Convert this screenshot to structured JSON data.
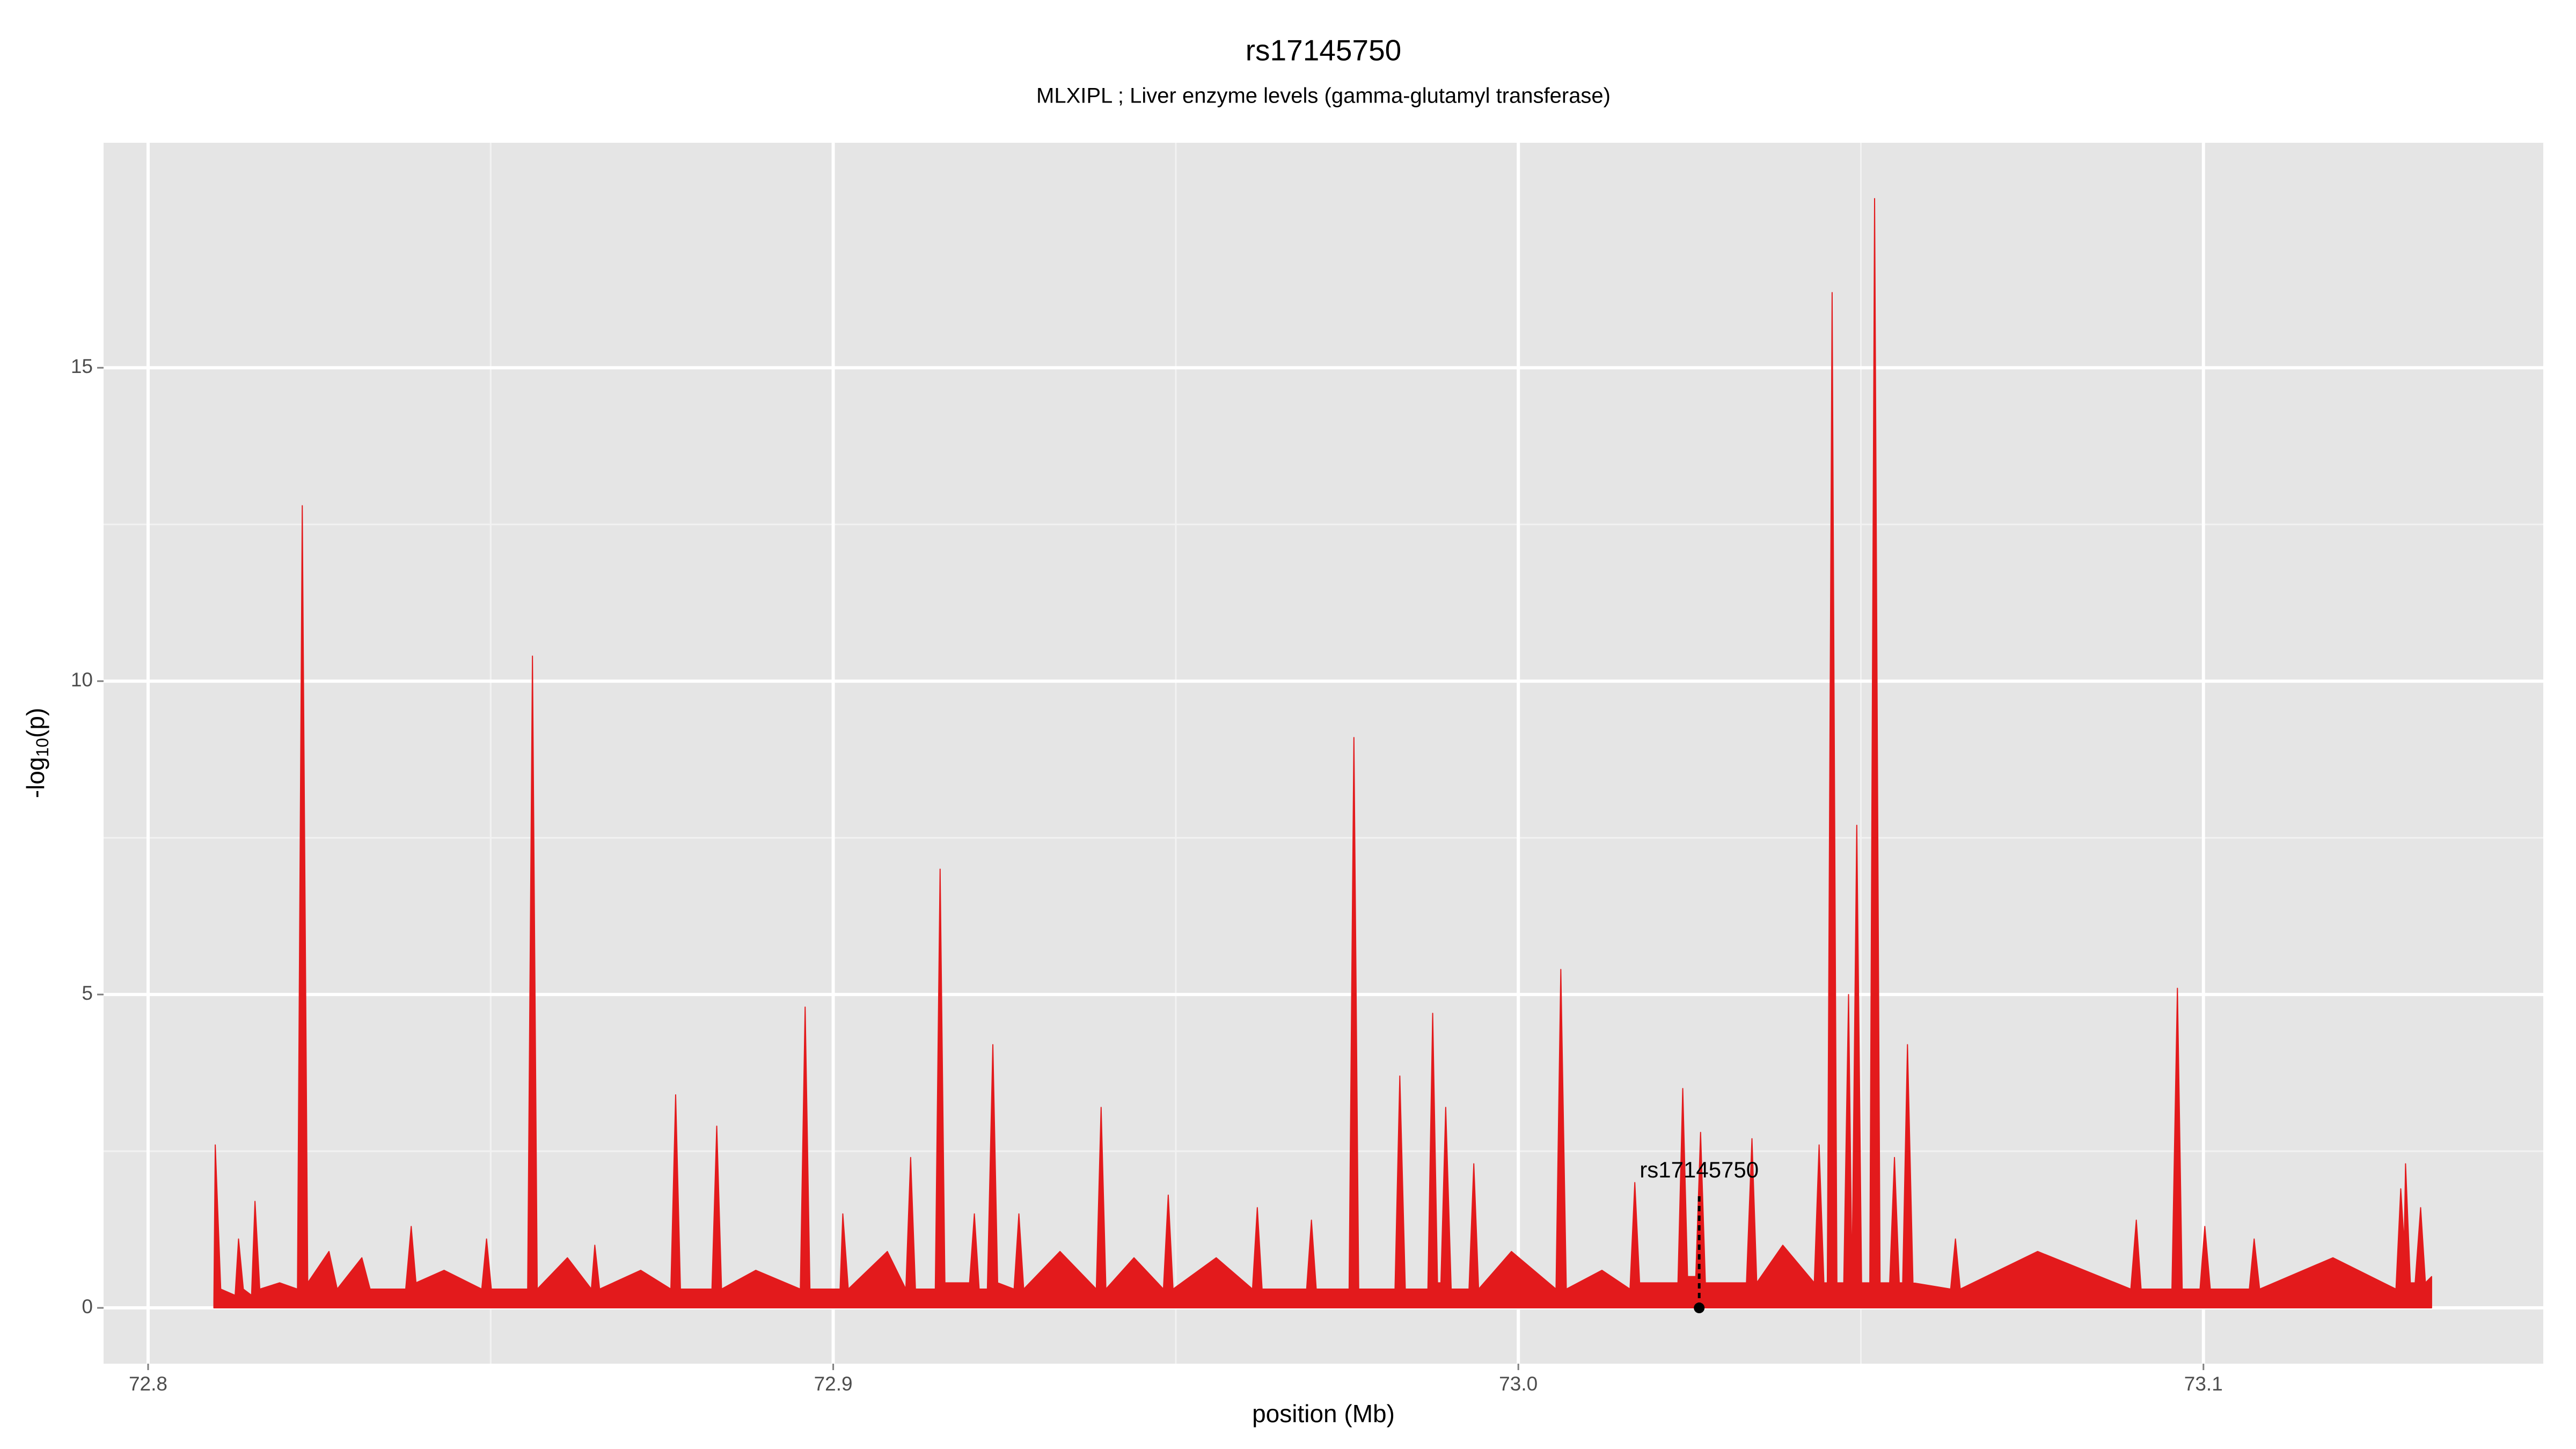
{
  "chart_data": {
    "type": "area",
    "title": "rs17145750",
    "subtitle": "MLXIPL ; Liver enzyme levels (gamma-glutamyl transferase)",
    "xlabel": "position (Mb)",
    "ylabel": [
      "-log",
      "10",
      "(p)"
    ],
    "color": "#e31a1c",
    "grid": true,
    "xlim": [
      72.7935,
      73.1496
    ],
    "ylim": [
      -0.89,
      18.59
    ],
    "xticks": [
      {
        "value": 72.8,
        "label": "72.8"
      },
      {
        "value": 72.9,
        "label": "72.9"
      },
      {
        "value": 73,
        "label": "73.0"
      },
      {
        "value": 73.1,
        "label": "73.1"
      }
    ],
    "yticks": [
      0,
      5,
      10,
      15
    ],
    "x": [
      72.8096,
      72.8098,
      72.8106,
      72.8127,
      72.8132,
      72.8139,
      72.8151,
      72.8156,
      72.8163,
      72.8192,
      72.8218,
      72.8225,
      72.8233,
      72.8264,
      72.8276,
      72.8312,
      72.8324,
      72.8376,
      72.8384,
      72.8391,
      72.8432,
      72.8487,
      72.8494,
      72.8501,
      72.8554,
      72.8561,
      72.8568,
      72.8612,
      72.8647,
      72.8652,
      72.8659,
      72.8719,
      72.8763,
      72.877,
      72.8777,
      72.8823,
      72.883,
      72.8837,
      72.8887,
      72.8952,
      72.8959,
      72.8966,
      72.901,
      72.9014,
      72.9022,
      72.9079,
      72.9106,
      72.9113,
      72.912,
      72.9149,
      72.9156,
      72.9163,
      72.9199,
      72.9206,
      72.9213,
      72.9225,
      72.9233,
      72.924,
      72.9264,
      72.9271,
      72.9278,
      72.9331,
      72.9384,
      72.9391,
      72.9398,
      72.9439,
      72.9482,
      72.9489,
      72.9496,
      72.9559,
      72.9612,
      72.9619,
      72.9626,
      72.9691,
      72.9698,
      72.9705,
      72.9753,
      72.976,
      72.9767,
      72.982,
      72.9827,
      72.9835,
      72.9868,
      72.9875,
      72.9882,
      72.9887,
      72.9894,
      72.9902,
      72.9928,
      72.9935,
      72.9942,
      72.999,
      73.0055,
      73.0062,
      73.007,
      73.0122,
      73.0163,
      73.017,
      73.0177,
      73.0233,
      73.024,
      73.0247,
      73.0259,
      73.0266,
      73.0273,
      73.0333,
      73.0341,
      73.0348,
      73.0386,
      73.0432,
      73.0439,
      73.0446,
      73.0451,
      73.0458,
      73.0465,
      73.0475,
      73.0482,
      73.0487,
      73.0494,
      73.0501,
      73.0513,
      73.052,
      73.0528,
      73.0542,
      73.0549,
      73.0556,
      73.0561,
      73.0568,
      73.0576,
      73.0631,
      73.0638,
      73.0645,
      73.0758,
      73.0894,
      73.0902,
      73.0909,
      73.0954,
      73.0962,
      73.0969,
      73.0995,
      73.1002,
      73.101,
      73.1067,
      73.1074,
      73.1082,
      73.1189,
      73.1281,
      73.1288,
      73.1293,
      73.1295,
      73.1302,
      73.1309,
      73.1317,
      73.1324,
      73.1333
    ],
    "values": [
      0.1,
      2.6,
      0.3,
      0.2,
      1.1,
      0.3,
      0.2,
      1.7,
      0.3,
      0.4,
      0.3,
      12.8,
      0.4,
      0.9,
      0.3,
      0.8,
      0.3,
      0.3,
      1.3,
      0.4,
      0.6,
      0.3,
      1.1,
      0.3,
      0.3,
      10.4,
      0.3,
      0.8,
      0.3,
      1.0,
      0.3,
      0.6,
      0.3,
      3.4,
      0.3,
      0.3,
      2.9,
      0.3,
      0.6,
      0.3,
      4.8,
      0.3,
      0.3,
      1.5,
      0.3,
      0.9,
      0.3,
      2.4,
      0.3,
      0.3,
      7.0,
      0.4,
      0.4,
      1.5,
      0.3,
      0.3,
      4.2,
      0.4,
      0.3,
      1.5,
      0.3,
      0.9,
      0.3,
      3.2,
      0.3,
      0.8,
      0.3,
      1.8,
      0.3,
      0.8,
      0.3,
      1.6,
      0.3,
      0.3,
      1.4,
      0.3,
      0.3,
      9.1,
      0.3,
      0.3,
      3.7,
      0.3,
      0.3,
      4.7,
      0.4,
      0.4,
      3.2,
      0.3,
      0.3,
      2.3,
      0.3,
      0.9,
      0.3,
      5.4,
      0.3,
      0.6,
      0.3,
      2.0,
      0.4,
      0.4,
      3.5,
      0.5,
      0.5,
      2.8,
      0.4,
      0.4,
      2.7,
      0.4,
      1.0,
      0.4,
      2.6,
      0.4,
      0.4,
      16.2,
      0.4,
      0.4,
      5.0,
      0.4,
      7.7,
      0.4,
      0.4,
      17.7,
      0.4,
      0.4,
      2.4,
      0.4,
      0.4,
      4.2,
      0.4,
      0.3,
      1.1,
      0.3,
      0.9,
      0.3,
      1.4,
      0.3,
      0.3,
      5.1,
      0.3,
      0.3,
      1.3,
      0.3,
      0.3,
      1.1,
      0.3,
      0.8,
      0.3,
      1.9,
      1.0,
      2.3,
      0.4,
      0.4,
      1.6,
      0.4,
      0.5
    ],
    "annotation": {
      "label": "rs17145750",
      "x": 73.0264,
      "y": 0
    }
  }
}
